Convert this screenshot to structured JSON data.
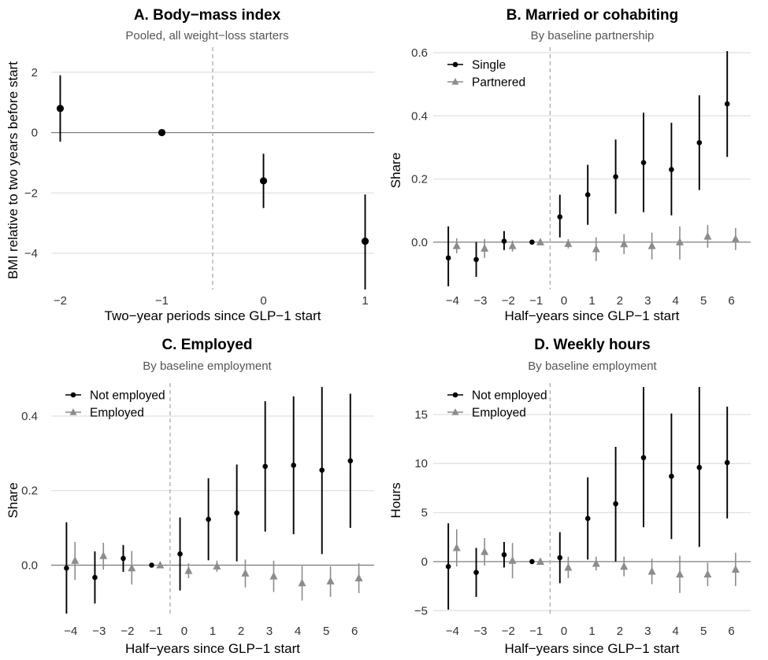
{
  "chart_data": [
    {
      "type": "scatter",
      "subtype": "event-study with 95% confidence intervals",
      "title": "A. Body−mass index",
      "subtitle": "Pooled, all weight−loss starters",
      "xlabel": "Two−year periods since GLP−1 start",
      "ylabel": "BMI relative to two years before start",
      "x_ticks": [
        "−2",
        "−1",
        "0",
        "1"
      ],
      "y_ticks": [
        "2",
        "0",
        "−2",
        "−4"
      ],
      "xlim": [
        -2.05,
        1.05
      ],
      "ylim": [
        -5.2,
        2.7
      ],
      "y_tick_values": [
        2,
        0,
        -2,
        -4
      ],
      "x_tick_values": [
        -2,
        -1,
        0,
        1
      ],
      "event_line": -0.5,
      "legend": null,
      "grid": "horizontal major",
      "series": [
        {
          "color": "#000000",
          "marker": "circle",
          "points": [
            {
              "x": -2,
              "y": 0.8,
              "lo": -0.3,
              "hi": 1.9
            },
            {
              "x": -1,
              "y": 0.0,
              "lo": 0.0,
              "hi": 0.0
            },
            {
              "x": 0,
              "y": -1.6,
              "lo": -2.5,
              "hi": -0.7
            },
            {
              "x": 1,
              "y": -3.6,
              "lo": -5.2,
              "hi": -2.05
            }
          ]
        }
      ]
    },
    {
      "type": "scatter",
      "subtype": "event-study with 95% confidence intervals",
      "title": "B. Married or cohabiting",
      "subtitle": "By baseline partnership",
      "xlabel": "Half−years since GLP−1 start",
      "ylabel": "Share",
      "x_ticks": [
        "−4",
        "−3",
        "−2",
        "−1",
        "0",
        "1",
        "2",
        "3",
        "4",
        "5",
        "6"
      ],
      "y_ticks": [
        "0.6",
        "0.4",
        "0.2",
        "0.0"
      ],
      "xlim": [
        -4.55,
        6.55
      ],
      "ylim": [
        -0.15,
        0.605
      ],
      "y_tick_values": [
        0.6,
        0.4,
        0.2,
        0.0
      ],
      "x_tick_values": [
        -4,
        -3,
        -2,
        -1,
        0,
        1,
        2,
        3,
        4,
        5,
        6
      ],
      "event_line": -0.5,
      "legend": "top-left",
      "grid": "horizontal major",
      "series": [
        {
          "name": "Single",
          "color": "#000000",
          "marker": "circle",
          "offset": -0.15,
          "points": [
            {
              "x": -4,
              "y": -0.05,
              "lo": -0.14,
              "hi": 0.05
            },
            {
              "x": -3,
              "y": -0.055,
              "lo": -0.11,
              "hi": 0.0
            },
            {
              "x": -2,
              "y": 0.003,
              "lo": -0.025,
              "hi": 0.035
            },
            {
              "x": -1,
              "y": 0.0,
              "lo": 0.0,
              "hi": 0.0
            },
            {
              "x": 0,
              "y": 0.08,
              "lo": 0.015,
              "hi": 0.15
            },
            {
              "x": 1,
              "y": 0.15,
              "lo": 0.055,
              "hi": 0.245
            },
            {
              "x": 2,
              "y": 0.207,
              "lo": 0.09,
              "hi": 0.325
            },
            {
              "x": 3,
              "y": 0.252,
              "lo": 0.095,
              "hi": 0.41
            },
            {
              "x": 4,
              "y": 0.23,
              "lo": 0.085,
              "hi": 0.378
            },
            {
              "x": 5,
              "y": 0.315,
              "lo": 0.165,
              "hi": 0.465
            },
            {
              "x": 6,
              "y": 0.438,
              "lo": 0.27,
              "hi": 0.605
            }
          ]
        },
        {
          "name": "Partnered",
          "color": "#8c8c8c",
          "marker": "triangle",
          "offset": 0.15,
          "points": [
            {
              "x": -4,
              "y": -0.012,
              "lo": -0.035,
              "hi": 0.012
            },
            {
              "x": -3,
              "y": -0.02,
              "lo": -0.05,
              "hi": 0.01
            },
            {
              "x": -2,
              "y": -0.012,
              "lo": -0.03,
              "hi": 0.005
            },
            {
              "x": -1,
              "y": 0.0,
              "lo": 0.0,
              "hi": 0.0
            },
            {
              "x": 0,
              "y": -0.005,
              "lo": -0.02,
              "hi": 0.01
            },
            {
              "x": 1,
              "y": -0.022,
              "lo": -0.06,
              "hi": 0.015
            },
            {
              "x": 2,
              "y": -0.006,
              "lo": -0.038,
              "hi": 0.025
            },
            {
              "x": 3,
              "y": -0.012,
              "lo": -0.055,
              "hi": 0.03
            },
            {
              "x": 4,
              "y": 0.0,
              "lo": -0.055,
              "hi": 0.05
            },
            {
              "x": 5,
              "y": 0.018,
              "lo": -0.018,
              "hi": 0.054
            },
            {
              "x": 6,
              "y": 0.01,
              "lo": -0.025,
              "hi": 0.045
            }
          ]
        }
      ]
    },
    {
      "type": "scatter",
      "subtype": "event-study with 95% confidence intervals",
      "title": "C. Employed",
      "subtitle": "By baseline employment",
      "xlabel": "Half−years since GLP−1 start",
      "ylabel": "Share",
      "x_ticks": [
        "−4",
        "−3",
        "−2",
        "−1",
        "0",
        "1",
        "2",
        "3",
        "4",
        "5",
        "6"
      ],
      "y_ticks": [
        "0.4",
        "0.2",
        "0.0"
      ],
      "xlim": [
        -4.55,
        6.55
      ],
      "ylim": [
        -0.13,
        0.478
      ],
      "y_tick_values": [
        0.4,
        0.2,
        0.0
      ],
      "x_tick_values": [
        -4,
        -3,
        -2,
        -1,
        0,
        1,
        2,
        3,
        4,
        5,
        6
      ],
      "event_line": -0.5,
      "legend": "top-left",
      "grid": "horizontal major",
      "series": [
        {
          "name": "Not employed",
          "color": "#000000",
          "marker": "circle",
          "offset": -0.15,
          "points": [
            {
              "x": -4,
              "y": -0.008,
              "lo": -0.13,
              "hi": 0.115
            },
            {
              "x": -3,
              "y": -0.033,
              "lo": -0.103,
              "hi": 0.037
            },
            {
              "x": -2,
              "y": 0.018,
              "lo": -0.018,
              "hi": 0.054
            },
            {
              "x": -1,
              "y": 0.0,
              "lo": 0.0,
              "hi": 0.0
            },
            {
              "x": 0,
              "y": 0.03,
              "lo": -0.068,
              "hi": 0.128
            },
            {
              "x": 1,
              "y": 0.123,
              "lo": 0.013,
              "hi": 0.233
            },
            {
              "x": 2,
              "y": 0.14,
              "lo": 0.01,
              "hi": 0.27
            },
            {
              "x": 3,
              "y": 0.265,
              "lo": 0.09,
              "hi": 0.44
            },
            {
              "x": 4,
              "y": 0.268,
              "lo": 0.083,
              "hi": 0.453
            },
            {
              "x": 5,
              "y": 0.255,
              "lo": 0.03,
              "hi": 0.478
            },
            {
              "x": 6,
              "y": 0.28,
              "lo": 0.1,
              "hi": 0.46
            }
          ]
        },
        {
          "name": "Employed",
          "color": "#8c8c8c",
          "marker": "triangle",
          "offset": 0.15,
          "points": [
            {
              "x": -4,
              "y": 0.012,
              "lo": -0.04,
              "hi": 0.062
            },
            {
              "x": -3,
              "y": 0.025,
              "lo": -0.012,
              "hi": 0.06
            },
            {
              "x": -2,
              "y": -0.008,
              "lo": -0.052,
              "hi": 0.038
            },
            {
              "x": -1,
              "y": 0.0,
              "lo": 0.0,
              "hi": 0.0
            },
            {
              "x": 0,
              "y": -0.015,
              "lo": -0.035,
              "hi": 0.005
            },
            {
              "x": 1,
              "y": -0.003,
              "lo": -0.018,
              "hi": 0.012
            },
            {
              "x": 2,
              "y": -0.022,
              "lo": -0.06,
              "hi": 0.015
            },
            {
              "x": 3,
              "y": -0.03,
              "lo": -0.072,
              "hi": 0.012
            },
            {
              "x": 4,
              "y": -0.048,
              "lo": -0.095,
              "hi": -0.002
            },
            {
              "x": 5,
              "y": -0.043,
              "lo": -0.085,
              "hi": -0.003
            },
            {
              "x": 6,
              "y": -0.035,
              "lo": -0.075,
              "hi": 0.005
            }
          ]
        }
      ]
    },
    {
      "type": "scatter",
      "subtype": "event-study with 95% confidence intervals",
      "title": "D. Weekly hours",
      "subtitle": "By baseline employment",
      "xlabel": "Half−years since GLP−1 start",
      "ylabel": "Hours",
      "x_ticks": [
        "−4",
        "−3",
        "−2",
        "−1",
        "0",
        "1",
        "2",
        "3",
        "4",
        "5",
        "6"
      ],
      "y_ticks": [
        "15",
        "10",
        "5",
        "0",
        "−5"
      ],
      "xlim": [
        -4.55,
        6.55
      ],
      "ylim": [
        -5.3,
        17.8
      ],
      "y_tick_values": [
        15,
        10,
        5,
        0,
        -5
      ],
      "x_tick_values": [
        -4,
        -3,
        -2,
        -1,
        0,
        1,
        2,
        3,
        4,
        5,
        6
      ],
      "event_line": -0.5,
      "legend": "top-left",
      "grid": "horizontal major",
      "series": [
        {
          "name": "Not employed",
          "color": "#000000",
          "marker": "circle",
          "offset": -0.15,
          "points": [
            {
              "x": -4,
              "y": -0.5,
              "lo": -4.9,
              "hi": 3.9
            },
            {
              "x": -3,
              "y": -1.1,
              "lo": -3.6,
              "hi": 1.4
            },
            {
              "x": -2,
              "y": 0.7,
              "lo": -0.6,
              "hi": 2.0
            },
            {
              "x": -1,
              "y": 0.0,
              "lo": 0.0,
              "hi": 0.0
            },
            {
              "x": 0,
              "y": 0.4,
              "lo": -2.2,
              "hi": 3.0
            },
            {
              "x": 1,
              "y": 4.4,
              "lo": 0.2,
              "hi": 8.6
            },
            {
              "x": 2,
              "y": 5.9,
              "lo": 0.0,
              "hi": 11.7
            },
            {
              "x": 3,
              "y": 10.6,
              "lo": 3.5,
              "hi": 17.8
            },
            {
              "x": 4,
              "y": 8.7,
              "lo": 2.3,
              "hi": 15.1
            },
            {
              "x": 5,
              "y": 9.6,
              "lo": 1.5,
              "hi": 17.8
            },
            {
              "x": 6,
              "y": 10.1,
              "lo": 4.4,
              "hi": 15.8
            }
          ]
        },
        {
          "name": "Employed",
          "color": "#8c8c8c",
          "marker": "triangle",
          "offset": 0.15,
          "points": [
            {
              "x": -4,
              "y": 1.4,
              "lo": -0.5,
              "hi": 3.3
            },
            {
              "x": -3,
              "y": 1.0,
              "lo": -0.4,
              "hi": 2.4
            },
            {
              "x": -2,
              "y": 0.1,
              "lo": -1.7,
              "hi": 1.9
            },
            {
              "x": -1,
              "y": 0.0,
              "lo": 0.0,
              "hi": 0.0
            },
            {
              "x": 0,
              "y": -0.6,
              "lo": -1.7,
              "hi": 0.5
            },
            {
              "x": 1,
              "y": -0.2,
              "lo": -0.9,
              "hi": 0.5
            },
            {
              "x": 2,
              "y": -0.5,
              "lo": -1.5,
              "hi": 0.5
            },
            {
              "x": 3,
              "y": -1.0,
              "lo": -2.3,
              "hi": 0.3
            },
            {
              "x": 4,
              "y": -1.3,
              "lo": -3.2,
              "hi": 0.6
            },
            {
              "x": 5,
              "y": -1.3,
              "lo": -2.5,
              "hi": -0.1
            },
            {
              "x": 6,
              "y": -0.8,
              "lo": -2.5,
              "hi": 0.9
            }
          ]
        }
      ]
    }
  ]
}
